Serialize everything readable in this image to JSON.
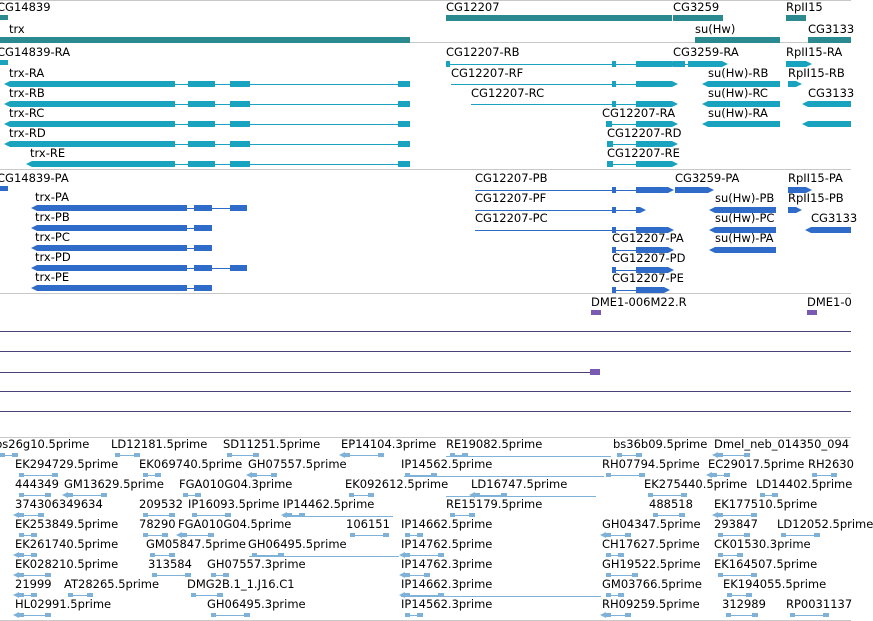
{
  "colors": {
    "gene": "#2b8a8f",
    "transcript": "#1aa3bf",
    "protein": "#2f6bc9",
    "clone": "#7a5ab0",
    "est": "#7fb2d9",
    "separator": "#c8c8c8",
    "hline": "#4b3f7a"
  },
  "tracks": {
    "genes": [
      {
        "label": "CG14839"
      },
      {
        "label": "trx"
      },
      {
        "label": "CG12207"
      },
      {
        "label": "CG3259"
      },
      {
        "label": "su(Hw)"
      },
      {
        "label": "RpII15"
      },
      {
        "label": "CG3133"
      }
    ],
    "transcripts": [
      {
        "label": "CG14839-RA"
      },
      {
        "label": "trx-RA"
      },
      {
        "label": "trx-RB"
      },
      {
        "label": "trx-RC"
      },
      {
        "label": "trx-RD"
      },
      {
        "label": "trx-RE"
      },
      {
        "label": "CG12207-RB"
      },
      {
        "label": "CG12207-RF"
      },
      {
        "label": "CG12207-RC"
      },
      {
        "label": "CG12207-RA"
      },
      {
        "label": "CG12207-RD"
      },
      {
        "label": "CG12207-RE"
      },
      {
        "label": "CG3259-RA"
      },
      {
        "label": "su(Hw)-RB"
      },
      {
        "label": "su(Hw)-RC"
      },
      {
        "label": "su(Hw)-RA"
      },
      {
        "label": "RpII15-RA"
      },
      {
        "label": "RpII15-RB"
      },
      {
        "label": "CG3133"
      }
    ],
    "proteins": [
      {
        "label": "CG14839-PA"
      },
      {
        "label": "trx-PA"
      },
      {
        "label": "trx-PB"
      },
      {
        "label": "trx-PC"
      },
      {
        "label": "trx-PD"
      },
      {
        "label": "trx-PE"
      },
      {
        "label": "CG12207-PB"
      },
      {
        "label": "CG12207-PF"
      },
      {
        "label": "CG12207-PC"
      },
      {
        "label": "CG12207-PA"
      },
      {
        "label": "CG12207-PD"
      },
      {
        "label": "CG12207-PE"
      },
      {
        "label": "CG3259-PA"
      },
      {
        "label": "su(Hw)-PB"
      },
      {
        "label": "su(Hw)-PC"
      },
      {
        "label": "su(Hw)-PA"
      },
      {
        "label": "RpII15-PA"
      },
      {
        "label": "RpII15-PB"
      },
      {
        "label": "CG3133"
      }
    ],
    "clones": [
      {
        "label": "DME1-006M22.R"
      },
      {
        "label": "DME1-0"
      }
    ],
    "ests": [
      "bs26g10.5prime",
      "LD12181.5prime",
      "SD11251.5prime",
      "EP14104.3prime",
      "RE19082.5prime",
      "bs36b09.5prime",
      "Dmel_neb_014350_094",
      "EK294729.5prime",
      "EK069740.5prime",
      "GH07557.5prime",
      "IP14562.5prime",
      "RH07794.5prime",
      "EC29017.5prime",
      "RH2630",
      "444349",
      "GM13629.5prime",
      "FGA010G04.3prime",
      "EK092612.5prime",
      "LD16747.5prime",
      "EK275440.5prime",
      "LD14402.5prime",
      "374306349634",
      "209532",
      "IP16093.5prime",
      "IP14462.5prime",
      "RE15179.5prime",
      "488518",
      "EK177510.5prime",
      "EK253849.5prime",
      "78290",
      "FGA010G04.5prime",
      "106151",
      "IP14662.5prime",
      "GH04347.5prime",
      "293847",
      "LD12052.5prime",
      "EK261740.5prime",
      "GM05847.5prime",
      "GH06495.5prime",
      "IP14762.5prime",
      "CH17627.5prime",
      "CK01530.3prime",
      "EK028210.5prime",
      "313584",
      "GH07557.3prime",
      "IP14762.3prime",
      "GH19522.5prime",
      "EK164507.5prime",
      "21999",
      "AT28265.5prime",
      "DMG2B.1_1.J16.C1",
      "IP14662.3prime",
      "GM03766.5prime",
      "EK194055.5prime",
      "HL02991.5prime",
      "GH06495.3prime",
      "IP14562.3prime",
      "RH09259.5prime",
      "312989",
      "RP0031137"
    ]
  }
}
